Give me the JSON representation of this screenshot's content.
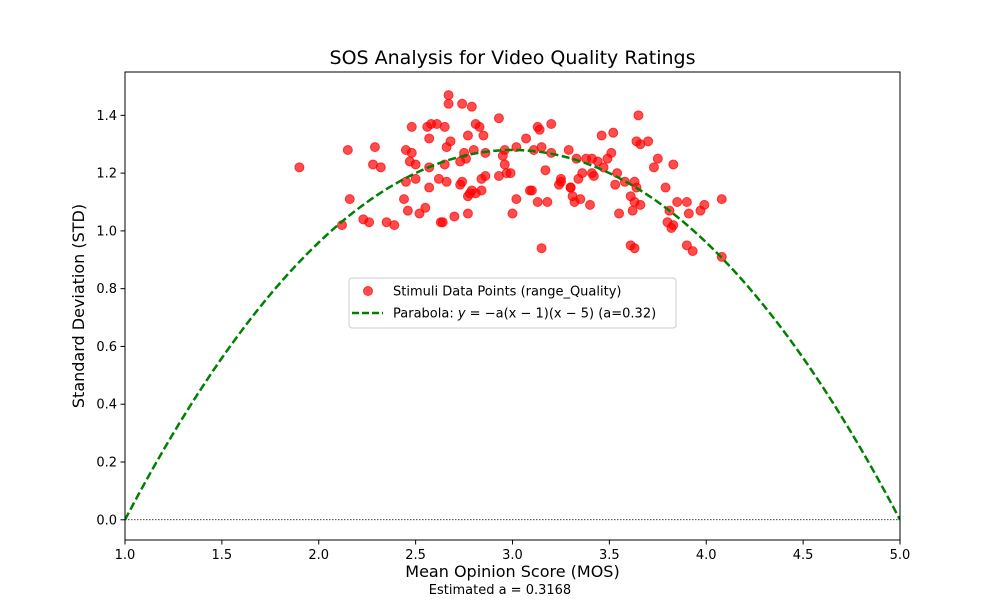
{
  "chart_data": {
    "type": "scatter",
    "title": "SOS Analysis for Video Quality Ratings",
    "xlabel": "Mean Opinion Score (MOS)",
    "ylabel": "Standard Deviation (STD)",
    "xlim": [
      1.0,
      5.0
    ],
    "ylim": [
      -0.07,
      1.55
    ],
    "xticks": [
      "1.0",
      "1.5",
      "2.0",
      "2.5",
      "3.0",
      "3.5",
      "4.0",
      "4.5",
      "5.0"
    ],
    "yticks": [
      "0.0",
      "0.2",
      "0.4",
      "0.6",
      "0.8",
      "1.0",
      "1.2",
      "1.4"
    ],
    "grid": false,
    "legend_position": "center",
    "footnote": "Estimated a = 0.3168",
    "series": [
      {
        "name": "Stimuli Data Points (range_Quality)",
        "kind": "scatter",
        "color": "#ff0000",
        "points": [
          [
            1.9,
            1.22
          ],
          [
            2.12,
            1.02
          ],
          [
            2.15,
            1.28
          ],
          [
            2.16,
            1.11
          ],
          [
            2.23,
            1.04
          ],
          [
            2.26,
            1.03
          ],
          [
            2.28,
            1.23
          ],
          [
            2.29,
            1.29
          ],
          [
            2.32,
            1.22
          ],
          [
            2.35,
            1.03
          ],
          [
            2.39,
            1.02
          ],
          [
            2.44,
            1.11
          ],
          [
            2.45,
            1.28
          ],
          [
            2.45,
            1.17
          ],
          [
            2.46,
            1.07
          ],
          [
            2.47,
            1.24
          ],
          [
            2.48,
            1.27
          ],
          [
            2.48,
            1.36
          ],
          [
            2.5,
            1.23
          ],
          [
            2.5,
            1.18
          ],
          [
            2.52,
            1.06
          ],
          [
            2.55,
            1.08
          ],
          [
            2.56,
            1.36
          ],
          [
            2.57,
            1.32
          ],
          [
            2.57,
            1.22
          ],
          [
            2.57,
            1.15
          ],
          [
            2.58,
            1.37
          ],
          [
            2.61,
            1.37
          ],
          [
            2.62,
            1.18
          ],
          [
            2.63,
            1.03
          ],
          [
            2.64,
            1.03
          ],
          [
            2.65,
            1.36
          ],
          [
            2.65,
            1.23
          ],
          [
            2.66,
            1.29
          ],
          [
            2.66,
            1.17
          ],
          [
            2.67,
            1.47
          ],
          [
            2.67,
            1.44
          ],
          [
            2.68,
            1.31
          ],
          [
            2.7,
            1.05
          ],
          [
            2.73,
            1.24
          ],
          [
            2.73,
            1.16
          ],
          [
            2.74,
            1.44
          ],
          [
            2.74,
            1.17
          ],
          [
            2.75,
            1.27
          ],
          [
            2.76,
            1.25
          ],
          [
            2.77,
            1.06
          ],
          [
            2.77,
            1.12
          ],
          [
            2.77,
            1.33
          ],
          [
            2.78,
            1.13
          ],
          [
            2.79,
            1.43
          ],
          [
            2.79,
            1.14
          ],
          [
            2.8,
            1.28
          ],
          [
            2.81,
            1.37
          ],
          [
            2.81,
            1.13
          ],
          [
            2.83,
            1.36
          ],
          [
            2.84,
            1.14
          ],
          [
            2.84,
            1.18
          ],
          [
            2.85,
            1.33
          ],
          [
            2.86,
            1.19
          ],
          [
            2.86,
            1.27
          ],
          [
            2.93,
            1.39
          ],
          [
            2.93,
            1.19
          ],
          [
            2.95,
            1.26
          ],
          [
            2.96,
            1.28
          ],
          [
            2.96,
            1.23
          ],
          [
            2.97,
            1.2
          ],
          [
            2.99,
            1.2
          ],
          [
            3.0,
            1.06
          ],
          [
            3.02,
            1.29
          ],
          [
            3.02,
            1.11
          ],
          [
            3.07,
            1.32
          ],
          [
            3.09,
            1.14
          ],
          [
            3.1,
            1.14
          ],
          [
            3.11,
            1.28
          ],
          [
            3.13,
            1.36
          ],
          [
            3.13,
            1.1
          ],
          [
            3.14,
            1.35
          ],
          [
            3.15,
            0.94
          ],
          [
            3.15,
            1.29
          ],
          [
            3.17,
            1.21
          ],
          [
            3.18,
            1.1
          ],
          [
            3.2,
            1.37
          ],
          [
            3.2,
            1.27
          ],
          [
            3.24,
            1.16
          ],
          [
            3.25,
            1.18
          ],
          [
            3.25,
            1.17
          ],
          [
            3.29,
            1.28
          ],
          [
            3.3,
            1.15
          ],
          [
            3.3,
            1.15
          ],
          [
            3.31,
            1.12
          ],
          [
            3.32,
            1.1
          ],
          [
            3.33,
            1.25
          ],
          [
            3.34,
            1.18
          ],
          [
            3.35,
            1.11
          ],
          [
            3.36,
            1.2
          ],
          [
            3.38,
            1.25
          ],
          [
            3.4,
            1.09
          ],
          [
            3.41,
            1.2
          ],
          [
            3.41,
            1.25
          ],
          [
            3.42,
            1.19
          ],
          [
            3.44,
            1.24
          ],
          [
            3.46,
            1.33
          ],
          [
            3.47,
            1.22
          ],
          [
            3.49,
            1.25
          ],
          [
            3.51,
            1.27
          ],
          [
            3.52,
            1.34
          ],
          [
            3.53,
            1.16
          ],
          [
            3.54,
            1.2
          ],
          [
            3.55,
            1.06
          ],
          [
            3.58,
            1.17
          ],
          [
            3.61,
            0.95
          ],
          [
            3.61,
            1.12
          ],
          [
            3.62,
            1.07
          ],
          [
            3.63,
            0.94
          ],
          [
            3.63,
            1.1
          ],
          [
            3.63,
            1.17
          ],
          [
            3.64,
            1.31
          ],
          [
            3.64,
            1.15
          ],
          [
            3.65,
            1.4
          ],
          [
            3.66,
            1.3
          ],
          [
            3.66,
            1.09
          ],
          [
            3.7,
            1.31
          ],
          [
            3.73,
            1.22
          ],
          [
            3.75,
            1.25
          ],
          [
            3.79,
            1.15
          ],
          [
            3.8,
            1.03
          ],
          [
            3.81,
            1.07
          ],
          [
            3.82,
            1.01
          ],
          [
            3.83,
            1.02
          ],
          [
            3.83,
            1.23
          ],
          [
            3.85,
            1.1
          ],
          [
            3.9,
            0.95
          ],
          [
            3.9,
            1.1
          ],
          [
            3.91,
            1.06
          ],
          [
            3.93,
            0.93
          ],
          [
            3.97,
            1.07
          ],
          [
            3.99,
            1.09
          ],
          [
            4.08,
            0.91
          ],
          [
            4.08,
            1.11
          ]
        ]
      },
      {
        "name_prefix": "Parabola: ",
        "equation_var": "y",
        "equation_rest": " = −a(x − 1)(x − 5)",
        "name_suffix": " (a=0.32)",
        "kind": "curve",
        "color": "#008000",
        "a": 0.32,
        "roots": [
          1,
          5
        ]
      }
    ],
    "reference_line": {
      "y": 0,
      "style": "dotted",
      "color": "#000000"
    }
  }
}
